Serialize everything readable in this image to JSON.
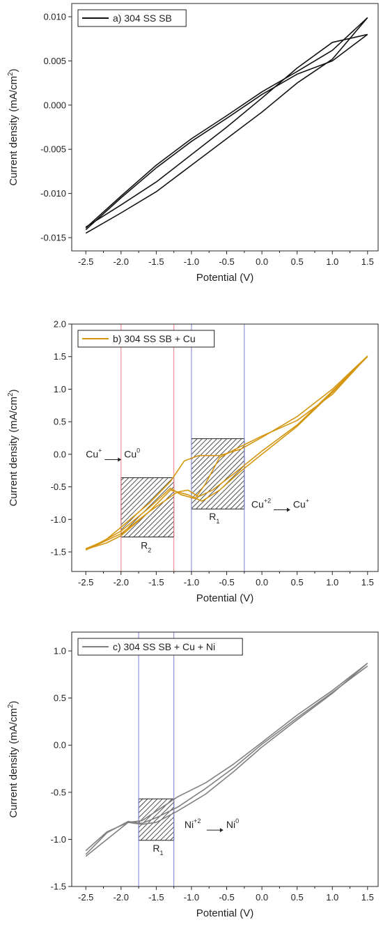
{
  "chart_data": [
    {
      "type": "line",
      "panel": "a",
      "xlabel": "Potential (V)",
      "ylabel": "Current density (mA/cm2)",
      "ylabel_text": "Current density (mA/cm",
      "ylabel_sup": "2",
      "ylabel_close": ")",
      "xlim": [
        -2.7,
        1.65
      ],
      "ylim": [
        -0.0165,
        0.0115
      ],
      "x_ticks": [
        -2.5,
        -2.0,
        -1.5,
        -1.0,
        -0.5,
        0.0,
        0.5,
        1.0,
        1.5
      ],
      "x_tick_labels": [
        "-2.5",
        "-2.0",
        "-1.5",
        "-1.0",
        "-0.5",
        "0.0",
        "0.5",
        "1.0",
        "1.5"
      ],
      "y_ticks": [
        -0.015,
        -0.01,
        -0.005,
        0.0,
        0.005,
        0.01
      ],
      "y_tick_labels": [
        "-0.015",
        "-0.010",
        "-0.005",
        "0.000",
        "0.005",
        "0.010"
      ],
      "legend": {
        "label": "a) 304 SS SB",
        "placement": "top-left"
      },
      "series": [
        {
          "name": "a) 304 SS SB",
          "color": "#111111",
          "points": [
            [
              [
                -2.5,
                -0.0139
              ],
              [
                -2.0,
                -0.0103
              ],
              [
                -1.5,
                -0.0068
              ],
              [
                -1.0,
                -0.0038
              ],
              [
                -0.5,
                -0.0012
              ],
              [
                0.0,
                0.0015
              ],
              [
                0.5,
                0.0038
              ],
              [
                1.0,
                0.0062
              ],
              [
                1.5,
                0.0099
              ]
            ],
            [
              [
                1.5,
                0.0099
              ],
              [
                1.0,
                0.0052
              ],
              [
                0.5,
                0.0025
              ],
              [
                0.0,
                -0.0008
              ],
              [
                -0.5,
                -0.0038
              ],
              [
                -1.0,
                -0.0068
              ],
              [
                -1.5,
                -0.0098
              ],
              [
                -2.0,
                -0.0122
              ],
              [
                -2.5,
                -0.0145
              ]
            ],
            [
              [
                -2.5,
                -0.0141
              ],
              [
                -2.0,
                -0.0105
              ],
              [
                -1.5,
                -0.0071
              ],
              [
                -1.0,
                -0.0041
              ],
              [
                -0.5,
                -0.0015
              ],
              [
                0.0,
                0.0012
              ],
              [
                0.5,
                0.0035
              ],
              [
                1.0,
                0.005
              ],
              [
                1.5,
                0.008
              ]
            ],
            [
              [
                1.5,
                0.008
              ],
              [
                1.0,
                0.0071
              ],
              [
                0.5,
                0.0042
              ],
              [
                0.0,
                0.0008
              ],
              [
                -0.5,
                -0.0025
              ],
              [
                -1.0,
                -0.0056
              ],
              [
                -1.5,
                -0.0087
              ],
              [
                -2.0,
                -0.0113
              ],
              [
                -2.5,
                -0.0138
              ]
            ]
          ]
        }
      ],
      "regions": [],
      "annotations": []
    },
    {
      "type": "line",
      "panel": "b",
      "xlabel": "Potential (V)",
      "ylabel": "Current density (mA/cm2)",
      "ylabel_text": "Current density (mA/cm",
      "ylabel_sup": "2",
      "ylabel_close": ")",
      "xlim": [
        -2.7,
        1.65
      ],
      "ylim": [
        -1.8,
        2.0
      ],
      "x_ticks": [
        -2.5,
        -2.0,
        -1.5,
        -1.0,
        -0.5,
        0.0,
        0.5,
        1.0,
        1.5
      ],
      "x_tick_labels": [
        "-2.5",
        "-2.0",
        "-1.5",
        "-1.0",
        "-0.5",
        "0.0",
        "0.5",
        "1.0",
        "1.5"
      ],
      "y_ticks": [
        -1.5,
        -1.0,
        -0.5,
        0.0,
        0.5,
        1.0,
        1.5,
        2.0
      ],
      "y_tick_labels": [
        "-1.5",
        "-1.0",
        "-0.5",
        "0.0",
        "0.5",
        "1.0",
        "1.5",
        "2.0"
      ],
      "legend": {
        "label": "b) 304 SS SB + Cu",
        "placement": "top-left"
      },
      "series": [
        {
          "name": "b) 304 SS SB + Cu",
          "color": "#d4960f",
          "points": [
            [
              [
                -2.5,
                -1.47
              ],
              [
                -2.2,
                -1.3
              ],
              [
                -2.0,
                -1.12
              ],
              [
                -1.6,
                -0.75
              ],
              [
                -1.3,
                -0.42
              ],
              [
                -1.1,
                -0.1
              ],
              [
                -0.9,
                -0.02
              ],
              [
                -0.6,
                -0.02
              ],
              [
                -0.3,
                0.08
              ],
              [
                0.0,
                0.26
              ],
              [
                0.5,
                0.58
              ],
              [
                1.0,
                1.0
              ],
              [
                1.5,
                1.51
              ]
            ],
            [
              [
                1.5,
                1.51
              ],
              [
                1.0,
                0.92
              ],
              [
                0.5,
                0.52
              ],
              [
                0.0,
                0.28
              ],
              [
                -0.3,
                0.12
              ],
              [
                -0.6,
                -0.05
              ],
              [
                -0.8,
                -0.45
              ],
              [
                -0.95,
                -0.68
              ],
              [
                -1.15,
                -0.62
              ],
              [
                -1.3,
                -0.52
              ],
              [
                -1.6,
                -0.82
              ],
              [
                -2.0,
                -1.18
              ],
              [
                -2.3,
                -1.36
              ],
              [
                -2.5,
                -1.45
              ]
            ],
            [
              [
                -2.5,
                -1.46
              ],
              [
                -2.2,
                -1.36
              ],
              [
                -2.0,
                -1.25
              ],
              [
                -1.6,
                -0.88
              ],
              [
                -1.2,
                -0.58
              ],
              [
                -1.05,
                -0.55
              ],
              [
                -0.9,
                -0.65
              ],
              [
                -0.7,
                -0.55
              ],
              [
                -0.4,
                -0.3
              ],
              [
                0.0,
                0.05
              ],
              [
                0.5,
                0.45
              ],
              [
                1.0,
                0.97
              ],
              [
                1.5,
                1.5
              ]
            ],
            [
              [
                1.5,
                1.5
              ],
              [
                1.0,
                0.95
              ],
              [
                0.5,
                0.43
              ],
              [
                0.0,
                0.0
              ],
              [
                -0.3,
                -0.26
              ],
              [
                -0.6,
                -0.55
              ],
              [
                -0.85,
                -0.72
              ],
              [
                -1.05,
                -0.62
              ],
              [
                -1.3,
                -0.55
              ],
              [
                -1.6,
                -0.88
              ],
              [
                -2.0,
                -1.22
              ],
              [
                -2.5,
                -1.47
              ]
            ]
          ]
        }
      ],
      "regions": [
        {
          "x0": -2.0,
          "x1": -1.25,
          "y0": -1.27,
          "y1": -0.36,
          "line_color": "#f08080",
          "label": "R",
          "sub": "2",
          "label_x": -1.72,
          "label_y": -1.45
        },
        {
          "x0": -1.0,
          "x1": -0.25,
          "y0": -0.84,
          "y1": 0.24,
          "line_color": "#7b7fd6",
          "label": "R",
          "sub": "1",
          "label_x": -0.75,
          "label_y": -1.01
        }
      ],
      "annotations": [
        {
          "from_ion": "Cu",
          "from_charge": "+",
          "to_ion": "Cu",
          "to_charge": "0",
          "x": -2.5,
          "y": -0.05
        },
        {
          "from_ion": "Cu",
          "from_charge": "+2",
          "to_ion": "Cu",
          "to_charge": "+",
          "x": -0.15,
          "y": -0.82
        }
      ]
    },
    {
      "type": "line",
      "panel": "c",
      "xlabel": "Potential (V)",
      "ylabel": "Current density (mA/cm2)",
      "ylabel_text": "Current density (mA/cm",
      "ylabel_sup": "2",
      "ylabel_close": ")",
      "xlim": [
        -2.7,
        1.65
      ],
      "ylim": [
        -1.5,
        1.2
      ],
      "x_ticks": [
        -2.5,
        -2.0,
        -1.5,
        -1.0,
        -0.5,
        0.0,
        0.5,
        1.0,
        1.5
      ],
      "x_tick_labels": [
        "-2.5",
        "-2.0",
        "-1.5",
        "-1.0",
        "-0.5",
        "0.0",
        "0.5",
        "1.0",
        "1.5"
      ],
      "y_ticks": [
        -1.5,
        -1.0,
        -0.5,
        0.0,
        0.5,
        1.0
      ],
      "y_tick_labels": [
        "-1.5",
        "-1.0",
        "-0.5",
        "0.0",
        "0.5",
        "1.0"
      ],
      "legend": {
        "label": "c) 304 SS SB + Cu + Ni",
        "placement": "top-left"
      },
      "series": [
        {
          "name": "c) 304 SS SB + Cu + Ni",
          "color": "#808080",
          "points": [
            [
              [
                -2.5,
                -1.12
              ],
              [
                -2.2,
                -0.92
              ],
              [
                -1.9,
                -0.82
              ],
              [
                -1.7,
                -0.8
              ],
              [
                -1.5,
                -0.7
              ],
              [
                -1.2,
                -0.55
              ],
              [
                -0.8,
                -0.4
              ],
              [
                -0.4,
                -0.2
              ],
              [
                0.0,
                0.03
              ],
              [
                0.5,
                0.32
              ],
              [
                1.0,
                0.58
              ],
              [
                1.5,
                0.87
              ]
            ],
            [
              [
                1.5,
                0.87
              ],
              [
                1.0,
                0.55
              ],
              [
                0.5,
                0.27
              ],
              [
                0.0,
                -0.02
              ],
              [
                -0.4,
                -0.28
              ],
              [
                -0.8,
                -0.52
              ],
              [
                -1.2,
                -0.7
              ],
              [
                -1.5,
                -0.82
              ],
              [
                -1.7,
                -0.84
              ],
              [
                -1.9,
                -0.82
              ],
              [
                -2.2,
                -1.0
              ],
              [
                -2.5,
                -1.18
              ]
            ],
            [
              [
                -2.5,
                -1.16
              ],
              [
                -2.2,
                -0.93
              ],
              [
                -1.9,
                -0.81
              ],
              [
                -1.7,
                -0.83
              ],
              [
                -1.5,
                -0.77
              ],
              [
                -1.2,
                -0.66
              ],
              [
                -0.8,
                -0.46
              ],
              [
                -0.4,
                -0.24
              ],
              [
                0.0,
                0.01
              ],
              [
                0.5,
                0.29
              ],
              [
                1.0,
                0.56
              ],
              [
                1.5,
                0.84
              ]
            ]
          ]
        }
      ],
      "regions": [
        {
          "x0": -1.75,
          "x1": -1.25,
          "y0": -1.01,
          "y1": -0.57,
          "line_color": "#7b7fd6",
          "label": "R",
          "sub": "1",
          "label_x": -1.55,
          "label_y": -1.13
        }
      ],
      "annotations": [
        {
          "from_ion": "Ni",
          "from_charge": "+2",
          "to_ion": "Ni",
          "to_charge": "0",
          "x": -1.1,
          "y": -0.88
        }
      ]
    }
  ]
}
